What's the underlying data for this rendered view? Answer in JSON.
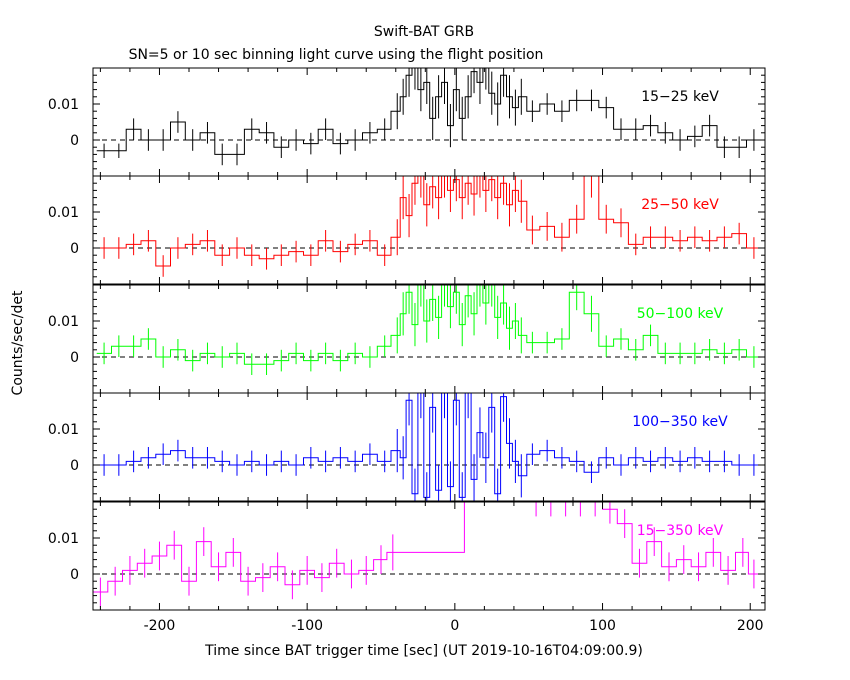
{
  "figure": {
    "title": "Swift-BAT GRB",
    "subtitle": "SN=5 or 10 sec binning light curve using the flight position",
    "xlabel": "Time since BAT trigger time [sec] (UT 2019-10-16T04:09:00.9)",
    "ylabel": "Counts/sec/det"
  },
  "chart_data": {
    "type": "line",
    "style": "step histogram with error bars",
    "title": "Swift-BAT GRB",
    "subtitle": "SN=5 or 10 sec binning light curve using the flight position",
    "xlabel": "Time since BAT trigger time [sec] (UT 2019-10-16T04:09:00.9)",
    "ylabel": "Counts/sec/det",
    "xlim": [
      -245,
      210
    ],
    "x_ticks": [
      -200,
      -100,
      0,
      100,
      200
    ],
    "x_tick_labels": [
      "-200",
      "-100",
      "0",
      "100",
      "200"
    ],
    "ylim": [
      -0.01,
      0.02
    ],
    "y_ticks": [
      0,
      0.01
    ],
    "y_tick_labels": [
      "0",
      "0.01"
    ],
    "zero_line": "dashed",
    "panels": [
      {
        "name": "15-25 keV",
        "label": "15−25 keV",
        "color": "#000000",
        "x": [
          -237.5,
          -227.5,
          -217.5,
          -207.5,
          -197.5,
          -187.5,
          -177.5,
          -167.5,
          -157.5,
          -147.5,
          -137.5,
          -127.5,
          -117.5,
          -107.5,
          -97.5,
          -87.5,
          -77.5,
          -67.5,
          -57.5,
          -47.5,
          -39,
          -35,
          -31,
          -27,
          -23,
          -19,
          -15,
          -11,
          -7,
          -3,
          1,
          5,
          9,
          13,
          17,
          21,
          25,
          29,
          33,
          37,
          41,
          45,
          52.5,
          62.5,
          72.5,
          82.5,
          92.5,
          102.5,
          112.5,
          122.5,
          132.5,
          142.5,
          152.5,
          162.5,
          172.5,
          182.5,
          192.5,
          202.5
        ],
        "y": [
          -0.003,
          -0.003,
          0.003,
          0,
          0,
          0.005,
          0,
          0.002,
          -0.004,
          -0.004,
          0.003,
          0.002,
          -0.002,
          0,
          -0.001,
          0.003,
          -0.001,
          0,
          0.002,
          0.003,
          0.008,
          0.012,
          0.018,
          0.02,
          0.014,
          0.016,
          0.006,
          0.012,
          0.016,
          0.004,
          0.014,
          0.006,
          0.012,
          0.019,
          0.016,
          0.02,
          0.013,
          0.01,
          0.018,
          0.012,
          0.009,
          0.012,
          0.008,
          0.01,
          0.008,
          0.011,
          0.011,
          0.009,
          0.003,
          0.003,
          0.004,
          0.002,
          0,
          0.001,
          0.004,
          -0.002,
          -0.002,
          0
        ],
        "err": [
          0.002,
          0.002,
          0.003,
          0.003,
          0.003,
          0.003,
          0.003,
          0.003,
          0.003,
          0.003,
          0.003,
          0.003,
          0.003,
          0.003,
          0.003,
          0.003,
          0.003,
          0.003,
          0.003,
          0.003,
          0.005,
          0.005,
          0.006,
          0.006,
          0.006,
          0.006,
          0.006,
          0.006,
          0.006,
          0.006,
          0.006,
          0.006,
          0.006,
          0.006,
          0.006,
          0.006,
          0.006,
          0.006,
          0.006,
          0.006,
          0.005,
          0.005,
          0.003,
          0.003,
          0.003,
          0.003,
          0.003,
          0.003,
          0.003,
          0.003,
          0.003,
          0.003,
          0.003,
          0.003,
          0.003,
          0.003,
          0.003,
          0.003
        ]
      },
      {
        "name": "25-50 keV",
        "label": "25−50 keV",
        "color": "#ff0000",
        "x": [
          -237.5,
          -227.5,
          -217.5,
          -207.5,
          -197.5,
          -187.5,
          -177.5,
          -167.5,
          -157.5,
          -147.5,
          -137.5,
          -127.5,
          -117.5,
          -107.5,
          -97.5,
          -87.5,
          -77.5,
          -67.5,
          -57.5,
          -47.5,
          -39,
          -35,
          -31,
          -27,
          -23,
          -19,
          -15,
          -11,
          -7,
          -3,
          1,
          5,
          9,
          13,
          17,
          21,
          25,
          29,
          33,
          37,
          41,
          45,
          52.5,
          62.5,
          72.5,
          82.5,
          92.5,
          102.5,
          112.5,
          122.5,
          132.5,
          142.5,
          152.5,
          162.5,
          172.5,
          182.5,
          192.5,
          202.5
        ],
        "y": [
          0,
          0,
          0.001,
          0.002,
          -0.005,
          0,
          0.001,
          0.002,
          -0.002,
          0,
          -0.002,
          -0.003,
          -0.002,
          -0.001,
          -0.002,
          0.002,
          -0.001,
          0.001,
          0.002,
          -0.002,
          0.003,
          0.014,
          0.009,
          0.018,
          0.02,
          0.012,
          0.017,
          0.014,
          0.02,
          0.016,
          0.019,
          0.014,
          0.018,
          0.015,
          0.02,
          0.016,
          0.019,
          0.014,
          0.018,
          0.012,
          0.016,
          0.013,
          0.005,
          0.006,
          0.003,
          0.008,
          0.02,
          0.008,
          0.007,
          0.001,
          0.003,
          0.003,
          0.002,
          0.003,
          0.002,
          0.003,
          0.004,
          0
        ],
        "err": [
          0.003,
          0.003,
          0.003,
          0.003,
          0.003,
          0.003,
          0.003,
          0.003,
          0.003,
          0.003,
          0.003,
          0.003,
          0.003,
          0.003,
          0.003,
          0.003,
          0.003,
          0.003,
          0.003,
          0.003,
          0.005,
          0.006,
          0.006,
          0.006,
          0.006,
          0.006,
          0.006,
          0.006,
          0.006,
          0.006,
          0.006,
          0.006,
          0.006,
          0.006,
          0.006,
          0.006,
          0.006,
          0.006,
          0.006,
          0.006,
          0.006,
          0.006,
          0.004,
          0.004,
          0.004,
          0.004,
          0.006,
          0.004,
          0.004,
          0.003,
          0.003,
          0.003,
          0.003,
          0.003,
          0.003,
          0.003,
          0.003,
          0.003
        ]
      },
      {
        "name": "50-100 keV",
        "label": "50−100 keV",
        "color": "#00ff00",
        "x": [
          -237.5,
          -227.5,
          -217.5,
          -207.5,
          -197.5,
          -187.5,
          -177.5,
          -167.5,
          -157.5,
          -147.5,
          -137.5,
          -127.5,
          -117.5,
          -107.5,
          -97.5,
          -87.5,
          -77.5,
          -67.5,
          -57.5,
          -47.5,
          -39,
          -35,
          -31,
          -27,
          -23,
          -19,
          -15,
          -11,
          -7,
          -3,
          1,
          5,
          9,
          13,
          17,
          21,
          25,
          29,
          33,
          37,
          41,
          45,
          52.5,
          62.5,
          72.5,
          82.5,
          92.5,
          102.5,
          112.5,
          122.5,
          132.5,
          142.5,
          152.5,
          162.5,
          172.5,
          182.5,
          192.5,
          202.5
        ],
        "y": [
          0.001,
          0.003,
          0.003,
          0.005,
          0,
          0.002,
          -0.001,
          0.001,
          0,
          0.001,
          -0.002,
          -0.002,
          -0.001,
          0.001,
          -0.001,
          0.001,
          -0.001,
          0.001,
          0,
          0.003,
          0.006,
          0.012,
          0.018,
          0.009,
          0.02,
          0.01,
          0.016,
          0.011,
          0.02,
          0.014,
          0.018,
          0.009,
          0.017,
          0.012,
          0.02,
          0.015,
          0.02,
          0.011,
          0.015,
          0.008,
          0.01,
          0.006,
          0.004,
          0.004,
          0.005,
          0.018,
          0.012,
          0.003,
          0.005,
          0.002,
          0.006,
          0.001,
          0.001,
          0.001,
          0.002,
          0.001,
          0.002,
          0
        ],
        "err": [
          0.003,
          0.003,
          0.003,
          0.003,
          0.003,
          0.003,
          0.003,
          0.003,
          0.003,
          0.003,
          0.003,
          0.003,
          0.003,
          0.003,
          0.003,
          0.003,
          0.003,
          0.003,
          0.003,
          0.003,
          0.005,
          0.006,
          0.006,
          0.006,
          0.006,
          0.006,
          0.006,
          0.006,
          0.006,
          0.006,
          0.006,
          0.006,
          0.006,
          0.006,
          0.006,
          0.006,
          0.006,
          0.006,
          0.006,
          0.006,
          0.005,
          0.005,
          0.003,
          0.003,
          0.003,
          0.005,
          0.005,
          0.003,
          0.003,
          0.003,
          0.003,
          0.003,
          0.003,
          0.003,
          0.003,
          0.003,
          0.003,
          0.003
        ]
      },
      {
        "name": "100-350 keV",
        "label": "100−350 keV",
        "color": "#0000ff",
        "x": [
          -237.5,
          -227.5,
          -217.5,
          -207.5,
          -197.5,
          -187.5,
          -177.5,
          -167.5,
          -157.5,
          -147.5,
          -137.5,
          -127.5,
          -117.5,
          -107.5,
          -97.5,
          -87.5,
          -77.5,
          -67.5,
          -57.5,
          -47.5,
          -39,
          -35,
          -31,
          -27,
          -23,
          -19,
          -15,
          -11,
          -7,
          -3,
          1,
          5,
          9,
          13,
          17,
          21,
          25,
          29,
          33,
          37,
          41,
          45,
          52.5,
          62.5,
          72.5,
          82.5,
          92.5,
          102.5,
          112.5,
          122.5,
          132.5,
          142.5,
          152.5,
          162.5,
          172.5,
          182.5,
          192.5,
          202.5
        ],
        "y": [
          0,
          0,
          0.001,
          0.002,
          0.003,
          0.004,
          0.002,
          0.002,
          0.001,
          0,
          0.001,
          0,
          0.001,
          0,
          0.002,
          0.001,
          0.002,
          0.001,
          0.003,
          0.001,
          0.004,
          0.002,
          0.018,
          -0.008,
          0.02,
          -0.009,
          0.016,
          -0.007,
          0.02,
          -0.006,
          0.018,
          -0.009,
          0.02,
          -0.004,
          0.009,
          0.002,
          0.016,
          -0.008,
          0.019,
          0.006,
          0.001,
          -0.003,
          0.003,
          0.004,
          0.002,
          0.001,
          -0.002,
          0.002,
          0,
          0.002,
          0.001,
          0.002,
          0.001,
          0.002,
          0.001,
          0.001,
          0,
          0
        ],
        "err": [
          0.003,
          0.003,
          0.003,
          0.003,
          0.003,
          0.003,
          0.003,
          0.003,
          0.003,
          0.003,
          0.003,
          0.003,
          0.003,
          0.003,
          0.003,
          0.003,
          0.003,
          0.003,
          0.003,
          0.003,
          0.006,
          0.006,
          0.007,
          0.007,
          0.007,
          0.007,
          0.007,
          0.007,
          0.007,
          0.007,
          0.007,
          0.007,
          0.007,
          0.007,
          0.007,
          0.007,
          0.007,
          0.007,
          0.007,
          0.007,
          0.006,
          0.006,
          0.003,
          0.003,
          0.003,
          0.003,
          0.003,
          0.003,
          0.003,
          0.003,
          0.003,
          0.003,
          0.003,
          0.003,
          0.003,
          0.003,
          0.003,
          0.003
        ]
      },
      {
        "name": "15-350 keV",
        "label": "15−350 keV",
        "color": "#ff00ff",
        "x": [
          -240,
          -230,
          -220,
          -210,
          -200,
          -190,
          -180,
          -170,
          -160,
          -150,
          -140,
          -130,
          -120,
          -110,
          -100,
          -90,
          -80,
          -70,
          -60,
          -50,
          -42,
          55,
          65,
          75,
          85,
          95,
          105,
          115,
          125,
          135,
          145,
          155,
          165,
          175,
          185,
          195,
          202.5
        ],
        "y": [
          -0.005,
          -0.002,
          0.001,
          0.003,
          0.005,
          0.008,
          -0.002,
          0.009,
          0.002,
          0.006,
          -0.002,
          -0.001,
          0.002,
          -0.003,
          0.001,
          -0.001,
          0.003,
          0,
          0.001,
          0.004,
          0.006,
          0.02,
          0.02,
          0.02,
          0.02,
          0.02,
          0.018,
          0.014,
          0.003,
          0.009,
          0.002,
          0.004,
          0.002,
          0.006,
          0.001,
          0.006,
          0
        ],
        "err": [
          0.004,
          0.004,
          0.004,
          0.004,
          0.004,
          0.004,
          0.004,
          0.004,
          0.004,
          0.004,
          0.004,
          0.004,
          0.004,
          0.004,
          0.004,
          0.004,
          0.004,
          0.004,
          0.004,
          0.004,
          0.005,
          0.004,
          0.004,
          0.004,
          0.004,
          0.004,
          0.004,
          0.004,
          0.004,
          0.004,
          0.004,
          0.004,
          0.004,
          0.004,
          0.004,
          0.004,
          0.004
        ]
      }
    ]
  }
}
